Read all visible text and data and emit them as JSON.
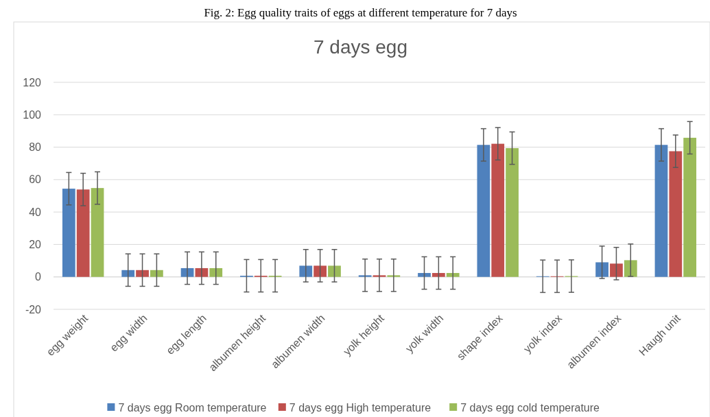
{
  "chart_data": {
    "type": "bar",
    "title": "7 days egg",
    "annotations": [
      "Fig. 2: Egg quality traits of eggs at different temperature for 7 days"
    ],
    "categories": [
      "egg weight",
      "egg width",
      "egg length",
      "albumen height",
      "albumen width",
      "yolk height",
      "yolk width",
      "shape index",
      "yolk index",
      "albumen index",
      "Haugh unit"
    ],
    "series": [
      {
        "name": "7 days egg Room temperature",
        "color": "#4f81bd",
        "values": [
          54.4,
          4.2,
          5.4,
          0.7,
          6.9,
          1.0,
          2.4,
          81.4,
          0.4,
          9.0,
          81.4
        ],
        "errors": [
          10,
          10,
          10,
          10,
          10,
          10,
          10,
          10,
          10,
          10,
          10
        ]
      },
      {
        "name": "7 days egg High temperature",
        "color": "#c0504d",
        "values": [
          53.9,
          4.2,
          5.4,
          0.7,
          6.9,
          1.0,
          2.4,
          82.1,
          0.4,
          8.2,
          77.5
        ],
        "errors": [
          10,
          10,
          10,
          10,
          10,
          10,
          10,
          10,
          10,
          10,
          10
        ]
      },
      {
        "name": "7 days egg cold temperature",
        "color": "#9bbb59",
        "values": [
          54.8,
          4.2,
          5.4,
          0.7,
          6.9,
          1.0,
          2.4,
          79.4,
          0.5,
          10.3,
          85.8
        ],
        "errors": [
          10,
          10,
          10,
          10,
          10,
          10,
          10,
          10,
          10,
          10,
          10
        ]
      }
    ],
    "ylim": [
      -20,
      120
    ],
    "yticks": [
      -20,
      0,
      20,
      40,
      60,
      80,
      100,
      120
    ],
    "grid": "y",
    "legend": "bottom"
  }
}
